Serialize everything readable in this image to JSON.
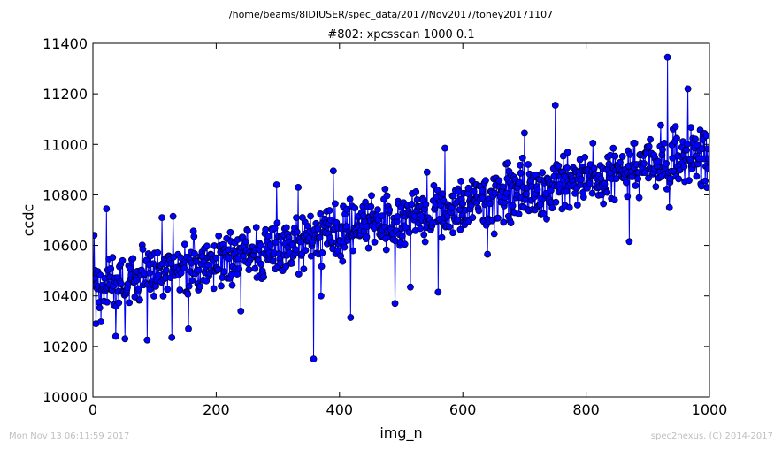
{
  "header": {
    "path": "/home/beams/8IDIUSER/spec_data/2017/Nov2017/toney20171107",
    "scan_title": "#802: xpcsscan 1000 0.1"
  },
  "footer": {
    "timestamp": "Mon Nov 13 06:11:59 2017",
    "credit": "spec2nexus, (C) 2014-2017"
  },
  "chart_data": {
    "type": "line",
    "title": "#802: xpcsscan 1000 0.1",
    "xlabel": "img_n",
    "ylabel": "ccdc",
    "xlim": [
      0,
      1000
    ],
    "ylim": [
      10000,
      11400
    ],
    "xticks": [
      0,
      200,
      400,
      600,
      800,
      1000
    ],
    "yticks": [
      10000,
      10200,
      10400,
      10600,
      10800,
      11000,
      11200,
      11400
    ],
    "grid": false,
    "legend": "none",
    "n_points": 1000,
    "series_color": "#0000ff",
    "marker_color": "#0000ff",
    "trend": {
      "start": 10440,
      "end": 10970
    },
    "noise_amplitude": 95,
    "notable_points": [
      {
        "x": 2,
        "y": 10640
      },
      {
        "x": 5,
        "y": 10290
      },
      {
        "x": 22,
        "y": 10745
      },
      {
        "x": 37,
        "y": 10240
      },
      {
        "x": 52,
        "y": 10230
      },
      {
        "x": 88,
        "y": 10225
      },
      {
        "x": 112,
        "y": 10710
      },
      {
        "x": 128,
        "y": 10235
      },
      {
        "x": 130,
        "y": 10715
      },
      {
        "x": 155,
        "y": 10270
      },
      {
        "x": 240,
        "y": 10340
      },
      {
        "x": 298,
        "y": 10840
      },
      {
        "x": 333,
        "y": 10830
      },
      {
        "x": 358,
        "y": 10150
      },
      {
        "x": 370,
        "y": 10400
      },
      {
        "x": 390,
        "y": 10895
      },
      {
        "x": 418,
        "y": 10315
      },
      {
        "x": 490,
        "y": 10370
      },
      {
        "x": 515,
        "y": 10435
      },
      {
        "x": 542,
        "y": 10890
      },
      {
        "x": 560,
        "y": 10415
      },
      {
        "x": 571,
        "y": 10985
      },
      {
        "x": 640,
        "y": 10565
      },
      {
        "x": 700,
        "y": 11045
      },
      {
        "x": 750,
        "y": 11155
      },
      {
        "x": 870,
        "y": 10615
      },
      {
        "x": 932,
        "y": 11345
      },
      {
        "x": 935,
        "y": 10750
      },
      {
        "x": 965,
        "y": 11220
      },
      {
        "x": 998,
        "y": 10905
      }
    ]
  }
}
